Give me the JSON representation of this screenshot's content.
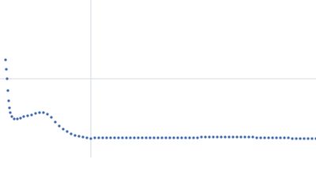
{
  "chart_data": {
    "type": "scatter",
    "color": "#3a66b0",
    "xlim": [
      0,
      400
    ],
    "ylim": [
      0,
      200
    ],
    "xticks": [
      115
    ],
    "yticks": [
      100
    ],
    "grid": true,
    "x": [
      7,
      8,
      9,
      10,
      11,
      12,
      13,
      15,
      18,
      22,
      26,
      30,
      35,
      40,
      45,
      50,
      55,
      60,
      65,
      70,
      75,
      80,
      85,
      90,
      95,
      100,
      105,
      110,
      115,
      120,
      125,
      130,
      135,
      140,
      145,
      150,
      155,
      160,
      165,
      170,
      175,
      180,
      185,
      190,
      195,
      200,
      205,
      210,
      215,
      220,
      225,
      230,
      235,
      240,
      245,
      250,
      255,
      260,
      265,
      270,
      275,
      280,
      285,
      290,
      295,
      300,
      305,
      310,
      315,
      320,
      325,
      330,
      335,
      340,
      345,
      350,
      355,
      360,
      365,
      370,
      375,
      380,
      385,
      390,
      395,
      400
    ],
    "values": [
      124,
      112,
      100,
      85,
      72,
      63,
      57,
      52,
      49,
      49,
      50,
      52,
      53,
      54,
      56,
      57,
      57,
      55,
      51,
      45,
      40,
      36,
      33,
      30,
      28,
      27,
      26,
      25,
      24,
      25,
      25,
      25,
      25,
      25,
      25,
      25,
      25,
      25,
      25,
      25,
      25,
      25,
      25,
      25,
      25,
      25,
      25,
      25,
      25,
      25,
      25,
      25,
      25,
      25,
      25,
      25,
      26,
      26,
      26,
      26,
      26,
      26,
      26,
      26,
      26,
      26,
      26,
      26,
      26,
      26,
      25,
      25,
      25,
      25,
      25,
      25,
      25,
      25,
      25,
      24,
      24,
      24,
      24,
      24,
      24,
      24
    ]
  }
}
